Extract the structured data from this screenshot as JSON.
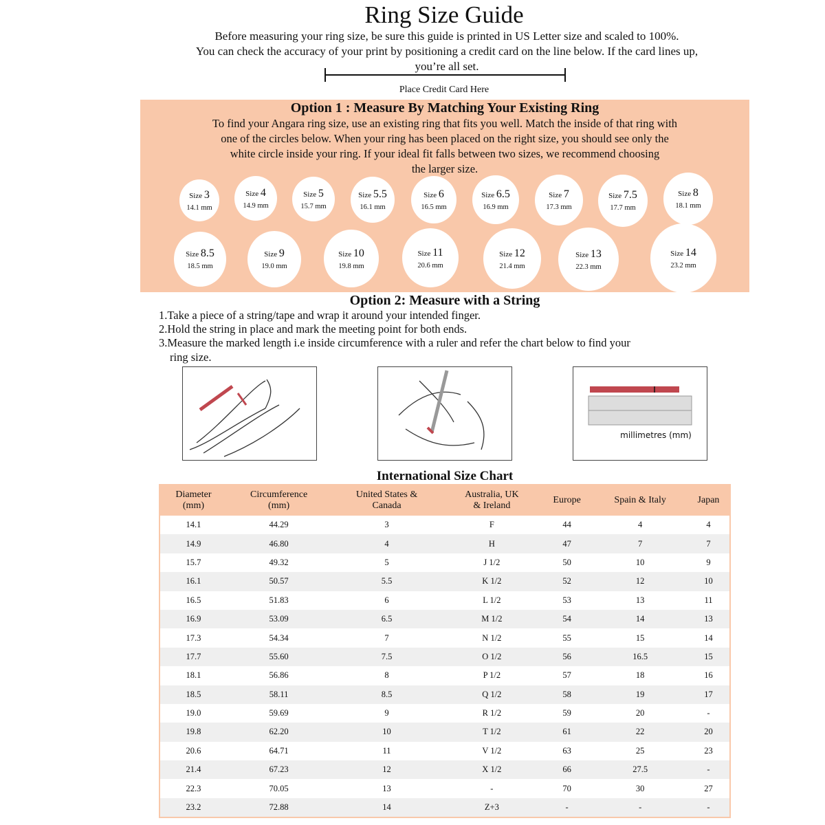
{
  "title": "Ring Size Guide",
  "intro": [
    "Before measuring your ring size, be sure this guide is printed in US Letter size and scaled to 100%.",
    "You can check the accuracy of your print by positioning a credit card on the line below. If the card lines up,",
    "you’re all set."
  ],
  "card_label": "Place Credit Card Here",
  "option1": {
    "heading": "Option 1 : Measure By Matching Your Existing Ring",
    "text": [
      "To find your Angara ring size, use an existing ring that fits you well. Match the inside of that ring with",
      "one of the circles below. When your ring has been placed on the right size, you should see only the",
      "white circle inside your ring. If your ideal fit falls between two sizes, we recommend choosing",
      "the larger size."
    ],
    "size_word": "Size",
    "circles": [
      {
        "size": "3",
        "mm": "14.1 mm"
      },
      {
        "size": "4",
        "mm": "14.9 mm"
      },
      {
        "size": "5",
        "mm": "15.7 mm"
      },
      {
        "size": "5.5",
        "mm": "16.1 mm"
      },
      {
        "size": "6",
        "mm": "16.5 mm"
      },
      {
        "size": "6.5",
        "mm": "16.9 mm"
      },
      {
        "size": "7",
        "mm": "17.3 mm"
      },
      {
        "size": "7.5",
        "mm": "17.7 mm"
      },
      {
        "size": "8",
        "mm": "18.1 mm"
      },
      {
        "size": "8.5",
        "mm": "18.5 mm"
      },
      {
        "size": "9",
        "mm": "19.0 mm"
      },
      {
        "size": "10",
        "mm": "19.8 mm"
      },
      {
        "size": "11",
        "mm": "20.6 mm"
      },
      {
        "size": "12",
        "mm": "21.4 mm"
      },
      {
        "size": "13",
        "mm": "22.3 mm"
      },
      {
        "size": "14",
        "mm": "23.2 mm"
      }
    ]
  },
  "option2": {
    "heading": "Option 2: Measure with a String",
    "steps": [
      "1.Take a piece of a string/tape and wrap it around your intended finger.",
      "2.Hold the string in place and mark the meeting point for both ends.",
      "3.Measure the marked length i.e inside circumference with a ruler and refer the chart below to find your",
      "ring size."
    ],
    "ruler_label": "millimetres (mm)"
  },
  "chart": {
    "title": "International Size Chart",
    "headers": [
      [
        "Diameter",
        "(mm)"
      ],
      [
        "Circumference",
        "(mm)"
      ],
      [
        "United States &",
        "Canada"
      ],
      [
        "Australia, UK",
        "& Ireland"
      ],
      [
        "Europe",
        ""
      ],
      [
        "Spain & Italy",
        ""
      ],
      [
        "Japan",
        ""
      ]
    ],
    "rows": [
      [
        "14.1",
        "44.29",
        "3",
        "F",
        "44",
        "4",
        "4"
      ],
      [
        "14.9",
        "46.80",
        "4",
        "H",
        "47",
        "7",
        "7"
      ],
      [
        "15.7",
        "49.32",
        "5",
        "J 1/2",
        "50",
        "10",
        "9"
      ],
      [
        "16.1",
        "50.57",
        "5.5",
        "K 1/2",
        "52",
        "12",
        "10"
      ],
      [
        "16.5",
        "51.83",
        "6",
        "L 1/2",
        "53",
        "13",
        "11"
      ],
      [
        "16.9",
        "53.09",
        "6.5",
        "M 1/2",
        "54",
        "14",
        "13"
      ],
      [
        "17.3",
        "54.34",
        "7",
        "N 1/2",
        "55",
        "15",
        "14"
      ],
      [
        "17.7",
        "55.60",
        "7.5",
        "O 1/2",
        "56",
        "16.5",
        "15"
      ],
      [
        "18.1",
        "56.86",
        "8",
        "P 1/2",
        "57",
        "18",
        "16"
      ],
      [
        "18.5",
        "58.11",
        "8.5",
        "Q 1/2",
        "58",
        "19",
        "17"
      ],
      [
        "19.0",
        "59.69",
        "9",
        "R 1/2",
        "59",
        "20",
        "-"
      ],
      [
        "19.8",
        "62.20",
        "10",
        "T 1/2",
        "61",
        "22",
        "20"
      ],
      [
        "20.6",
        "64.71",
        "11",
        "V 1/2",
        "63",
        "25",
        "23"
      ],
      [
        "21.4",
        "67.23",
        "12",
        "X 1/2",
        "66",
        "27.5",
        "-"
      ],
      [
        "22.3",
        "70.05",
        "13",
        "-",
        "70",
        "30",
        "27"
      ],
      [
        "23.2",
        "72.88",
        "14",
        "Z+3",
        "-",
        "-",
        "-"
      ]
    ]
  },
  "colors": {
    "peach": "#f9c8aa",
    "marker_red": "#c0474f"
  }
}
